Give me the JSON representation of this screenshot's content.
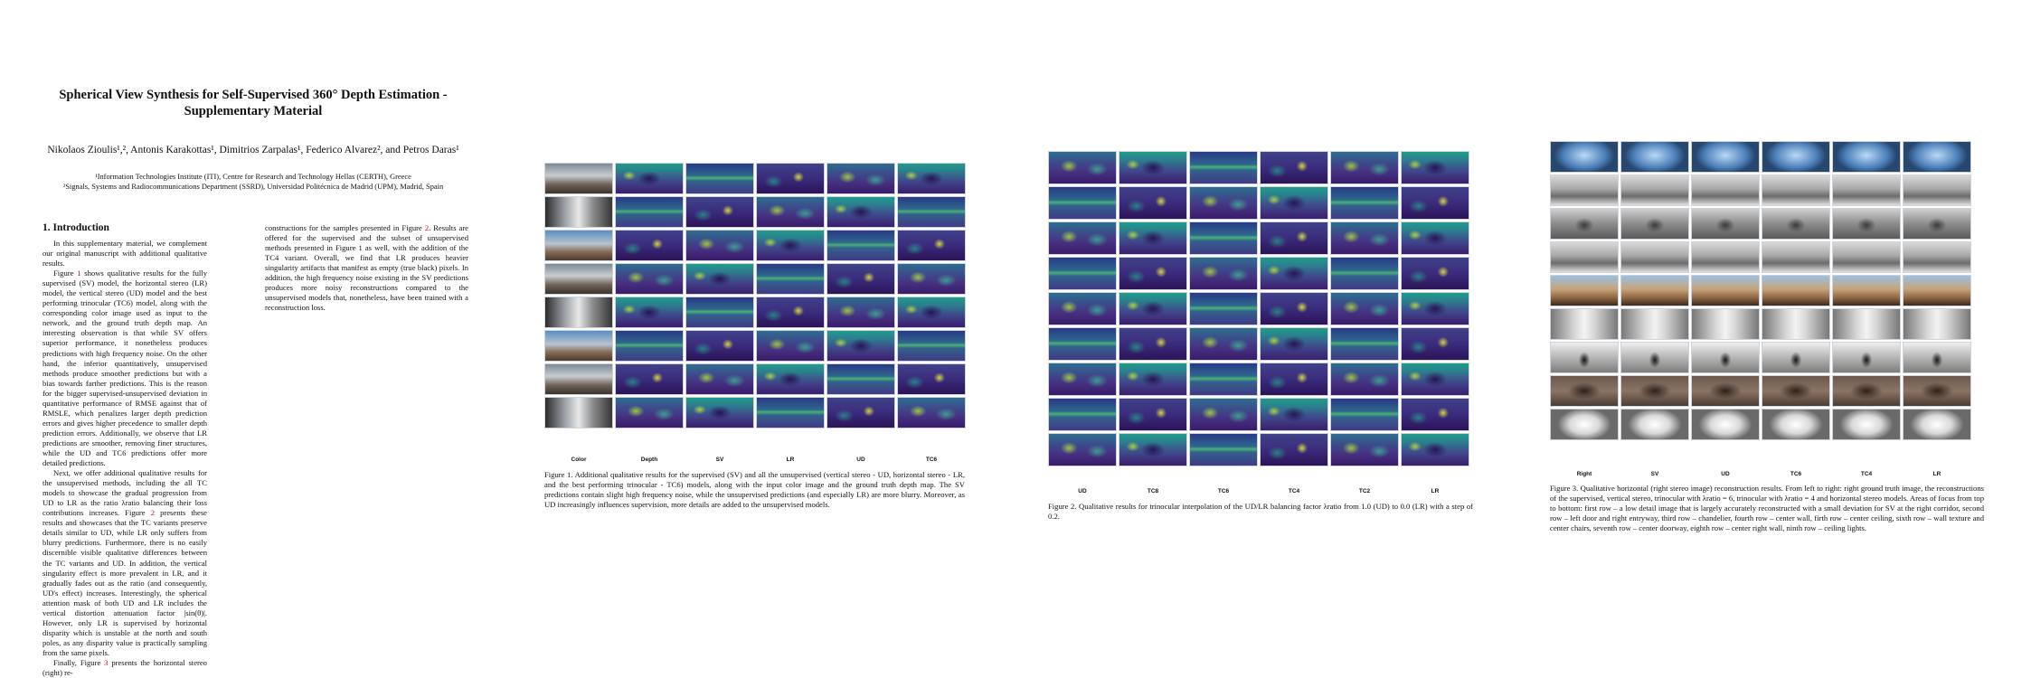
{
  "paper": {
    "title_line1": "Spherical View Synthesis for Self-Supervised 360° Depth Estimation -",
    "title_line2": "Supplementary Material",
    "authors": "Nikolaos Zioulis¹,², Antonis Karakottas¹, Dimitrios Zarpalas¹, Federico Alvarez², and Petros Daras¹",
    "affiliation1": "¹Information Technologies Institute (ITI), Centre for Research and Technology Hellas (CERTH), Greece",
    "affiliation2": "²Signals, Systems and Radiocommunications Department (SSRD), Universidad Politécnica de Madrid (UPM), Madrid, Spain",
    "section_heading": "1. Introduction",
    "col1_p1": "In this supplementary material, we complement our original manuscript with additional qualitative results.",
    "col1_p2_pre": "Figure ",
    "col1_p2_ref": "1",
    "col1_p2_post": " shows qualitative results for the fully supervised (SV) model, the horizontal stereo (LR) model, the vertical stereo (UD) model and the best performing trinocular (TC6) model, along with the corresponding color image used as input to the network, and the ground truth depth map. An interesting observation is that while SV offers superior performance, it nonetheless produces predictions with high frequency noise. On the other hand, the inferior quantitatively, unsupervised methods produce smoother predictions but with a bias towards farther predictions. This is the reason for the bigger supervised-unsupervised deviation in quantitative performance of RMSE against that of RMSLE, which penalizes larger depth prediction errors and gives higher precedence to smaller depth prediction errors. Additionally, we observe that LR predictions are smoother, removing finer structures, while the UD and TC6 predictions offer more detailed predictions.",
    "col1_p3_a": "Next, we offer additional qualitative results for the unsupervised methods, including the all TC models to showcase the gradual progression from UD to LR as the ratio λratio balancing their loss contributions increases. Figure ",
    "col1_p3_ref": "2",
    "col1_p3_b": " presents these results and showcases that the TC variants preserve details similar to UD, while LR only suffers from blurry predictions. Furthermore, there is no easily discernible visible qualitative differences between the TC variants and UD. In addition, the vertical singularity effect is more prevalent in LR, and it gradually fades out as the ratio (and consequently, UD's effect) increases. Interestingly, the spherical attention mask of both UD and LR includes the vertical distortion attenuation factor |sin(θ)|. However, only LR is supervised by horizontal disparity which is unstable at the north and south poles, as any disparity value is practically sampling from the same pixels.",
    "col1_p4_pre": "Finally, Figure ",
    "col1_p4_ref": "3",
    "col1_p4_post": " presents the horizontal stereo (right) re-",
    "col2_pre": "constructions for the samples presented in Figure ",
    "col2_ref": "2",
    "col2_post": ". Results are offered for the supervised and the subset of unsupervised methods presented in Figure 1 as well, with the addition of the TC4 variant. Overall, we find that LR produces heavier singularity artifacts that manifest as empty (true black) pixels. In addition, the high frequency noise existing in the SV predictions produces more noisy reconstructions compared to the unsupervised models that, nonetheless, have been trained with a reconstruction loss."
  },
  "figure1": {
    "columns": [
      "Color",
      "Depth",
      "SV",
      "LR",
      "UD",
      "TC6"
    ],
    "caption": "Figure 1.   Additional qualitative results for the supervised (SV) and all the unsupervised (vertical stereo - UD, horizontal stereo - LR, and the best performing trinocular - TC6) models, along with the input color image and the ground truth depth map. The SV predictions contain slight high frequency noise, while the unsupervised predictions (and especially LR) are more blurry. Moreover, as UD increasingly influences supervision, more details are added to the unsupervised models."
  },
  "figure2": {
    "columns": [
      "UD",
      "TC8",
      "TC6",
      "TC4",
      "TC2",
      "LR"
    ],
    "caption": "Figure 2.   Qualitative results for trinocular interpolation of the UD/LR balancing factor λratio from 1.0 (UD) to 0.0 (LR) with a step of 0.2."
  },
  "figure3": {
    "columns": [
      "Right",
      "SV",
      "UD",
      "TC6",
      "TC4",
      "LR"
    ],
    "caption": "Figure 3.   Qualitative horizontal (right stereo image) reconstruction results. From left to right: right ground truth image, the reconstructions of the supervised, vertical stereo, trinocular with λratio = 6, trinocular with λratio = 4 and horizontal stereo models. Areas of focus from top to bottom: first row – a low detail image that is largely accurately reconstructed with a small deviation for SV at the right corridor, second row – left door and right entryway, third row – chandelier, fourth row – center wall, firth row – center ceiling, sixth row – wall texture and center chairs, seventh row – center doorway, eighth row – center right wall, ninth row – ceiling lights."
  }
}
